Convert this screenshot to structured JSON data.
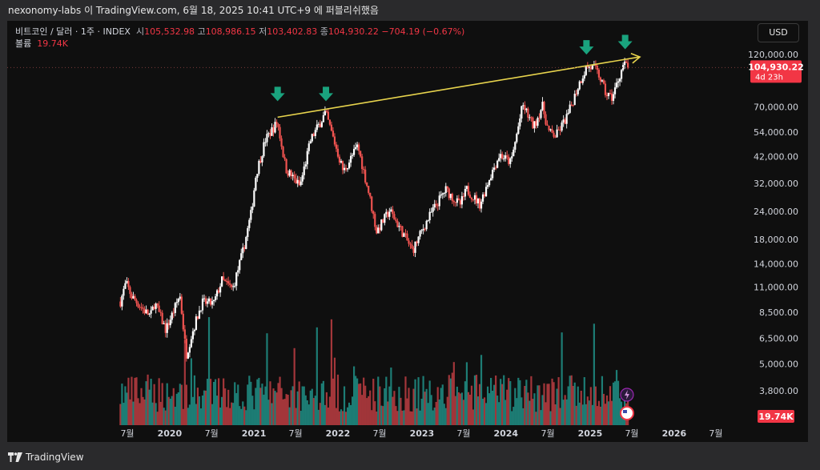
{
  "window": {
    "title": "nexonomy-labs 이 TradingView.com, 6월 18, 2025 10:41 UTC+9 에 퍼블리쉬했음"
  },
  "legend": {
    "symbol": "비트코인 / 달러 · 1주 · INDEX",
    "o_label": "시",
    "o_val": "105,532.98",
    "h_label": "고",
    "h_val": "108,986.15",
    "l_label": "저",
    "l_val": "103,402.83",
    "c_label": "종",
    "c_val": "104,930.22",
    "change": "−704.19 (−0.67%)",
    "volume_label": "볼륨",
    "volume_val": "19.74K"
  },
  "currency_button": "USD",
  "price_badge": {
    "price": "104,930.22",
    "countdown": "4d 23h"
  },
  "volume_badge": "19.74K",
  "footer": {
    "brand": "TradingView"
  },
  "colors": {
    "up": "#26a69a",
    "down": "#ef5350",
    "trendline": "#e8d44d",
    "arrow": "#1aa37e",
    "badge": "#f23645",
    "background": "#0f0f0f"
  },
  "chart_data": {
    "type": "candlestick",
    "interval": "1주",
    "y_scale": "log",
    "y_ticks": [
      "120,000.00",
      "70,000.00",
      "54,000.00",
      "42,000.00",
      "32,000.00",
      "24,000.00",
      "18,000.00",
      "14,000.00",
      "11,000.00",
      "8,500.00",
      "6,500.00",
      "5,000.00",
      "3,800.00"
    ],
    "x_ticks": [
      "7월",
      "2020",
      "7월",
      "2021",
      "7월",
      "2022",
      "7월",
      "2023",
      "7월",
      "2024",
      "7월",
      "2025",
      "7월",
      "2026",
      "7월"
    ],
    "price_anchors": [
      [
        "2019-06-01",
        9500
      ],
      [
        "2019-06-25",
        11500
      ],
      [
        "2019-07-20",
        10000
      ],
      [
        "2019-09-20",
        8500
      ],
      [
        "2019-10-10",
        8200
      ],
      [
        "2019-10-28",
        9400
      ],
      [
        "2019-12-15",
        7100
      ],
      [
        "2020-01-20",
        8700
      ],
      [
        "2020-02-14",
        10200
      ],
      [
        "2020-03-13",
        5500
      ],
      [
        "2020-04-10",
        7000
      ],
      [
        "2020-05-20",
        9400
      ],
      [
        "2020-07-10",
        9300
      ],
      [
        "2020-08-15",
        11800
      ],
      [
        "2020-10-01",
        10800
      ],
      [
        "2020-11-15",
        16000
      ],
      [
        "2020-12-20",
        23500
      ],
      [
        "2021-01-10",
        35000
      ],
      [
        "2021-02-20",
        50000
      ],
      [
        "2021-04-13",
        60000
      ],
      [
        "2021-05-20",
        37000
      ],
      [
        "2021-07-20",
        31000
      ],
      [
        "2021-09-05",
        50000
      ],
      [
        "2021-11-08",
        66000
      ],
      [
        "2022-01-25",
        36000
      ],
      [
        "2022-03-28",
        47000
      ],
      [
        "2022-05-15",
        29000
      ],
      [
        "2022-06-18",
        19500
      ],
      [
        "2022-08-14",
        24200
      ],
      [
        "2022-10-10",
        19200
      ],
      [
        "2022-11-21",
        16000
      ],
      [
        "2023-01-15",
        21000
      ],
      [
        "2023-02-20",
        24500
      ],
      [
        "2023-04-14",
        30000
      ],
      [
        "2023-06-15",
        25500
      ],
      [
        "2023-07-15",
        30000
      ],
      [
        "2023-09-10",
        25800
      ],
      [
        "2023-10-25",
        34500
      ],
      [
        "2023-12-05",
        43000
      ],
      [
        "2024-01-23",
        39500
      ],
      [
        "2024-03-14",
        71500
      ],
      [
        "2024-05-01",
        57000
      ],
      [
        "2024-06-07",
        71000
      ],
      [
        "2024-07-05",
        54000
      ],
      [
        "2024-08-05",
        52000
      ],
      [
        "2024-09-25",
        64000
      ],
      [
        "2024-11-12",
        88000
      ],
      [
        "2024-12-17",
        106000
      ],
      [
        "2025-01-20",
        104000
      ],
      [
        "2025-02-10",
        96000
      ],
      [
        "2025-03-10",
        80000
      ],
      [
        "2025-04-07",
        77000
      ],
      [
        "2025-05-05",
        94000
      ],
      [
        "2025-05-26",
        109000
      ],
      [
        "2025-06-16",
        104930
      ]
    ],
    "volume_scale_k": 60,
    "last_volume_k": 19.74,
    "annotations": {
      "trendline": [
        [
          "2021-04-14",
          63000
        ],
        [
          "2025-08-05",
          117000
        ]
      ],
      "arrows": [
        [
          "2021-04-14",
          78000
        ],
        [
          "2021-11-10",
          78000
        ],
        [
          "2024-12-16",
          126000
        ],
        [
          "2025-06-02",
          133000
        ]
      ]
    }
  }
}
